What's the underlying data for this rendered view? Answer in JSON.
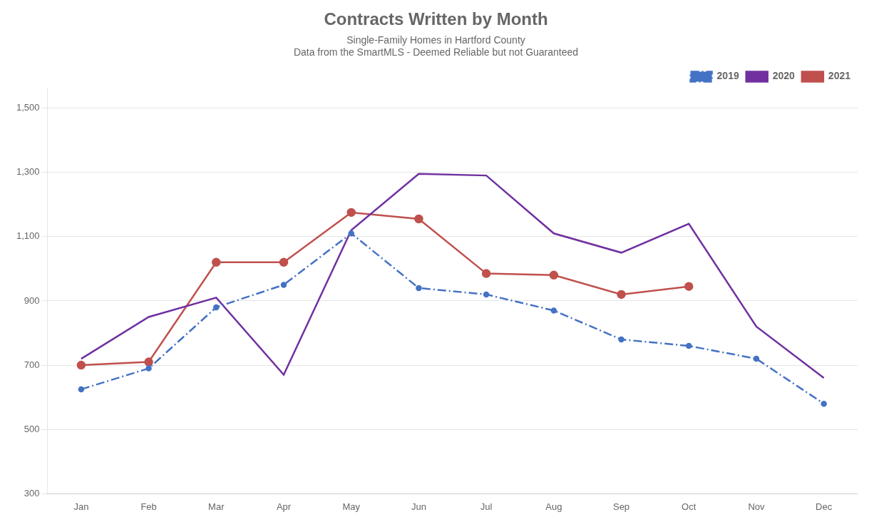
{
  "chart_data": {
    "type": "line",
    "title": "Contracts Written by Month",
    "subtitle": [
      "Single-Family Homes in Hartford County",
      "Data from the SmartMLS - Deemed Reliable but not Guaranteed"
    ],
    "categories": [
      "Jan",
      "Feb",
      "Mar",
      "Apr",
      "May",
      "Jun",
      "Jul",
      "Aug",
      "Sep",
      "Oct",
      "Nov",
      "Dec"
    ],
    "series": [
      {
        "name": "2019",
        "color": "#4472C4",
        "marker": "point",
        "line_style": "dashdot",
        "values": [
          625,
          690,
          880,
          950,
          1110,
          940,
          920,
          870,
          780,
          760,
          720,
          580
        ]
      },
      {
        "name": "2020",
        "color": "#7030A0",
        "marker": "none",
        "line_style": "solid",
        "values": [
          720,
          850,
          910,
          670,
          1120,
          1295,
          1290,
          1110,
          1050,
          1140,
          820,
          660
        ]
      },
      {
        "name": "2021",
        "color": "#C0504D",
        "marker": "circle",
        "line_style": "solid",
        "values": [
          700,
          710,
          1020,
          1020,
          1175,
          1155,
          985,
          980,
          920,
          945,
          null,
          null
        ]
      }
    ],
    "ylim": [
      300,
      1560
    ],
    "yticks": [
      300,
      500,
      700,
      900,
      {
        "value": 1100,
        "label": "1,100"
      },
      {
        "value": 1300,
        "label": "1,300"
      },
      {
        "value": 1500,
        "label": "1,500"
      }
    ],
    "grid": true,
    "legend": "upper right"
  }
}
